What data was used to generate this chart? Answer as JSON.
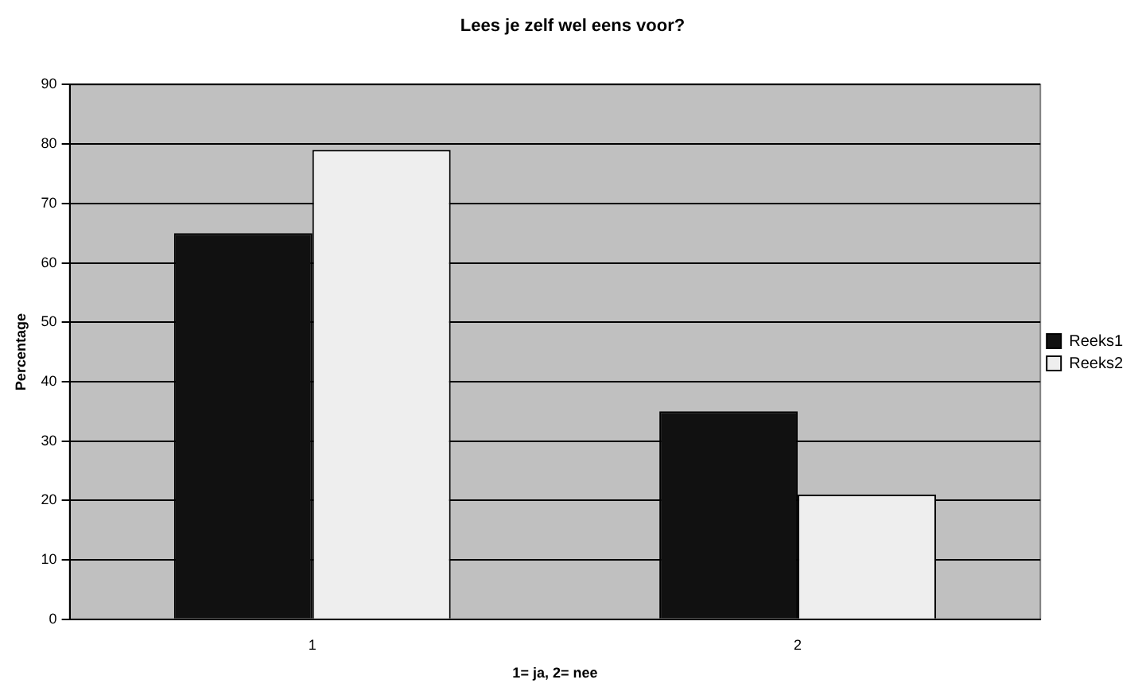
{
  "chart_data": {
    "type": "bar",
    "title": "Lees je zelf wel eens voor?",
    "xlabel": "1= ja, 2= nee",
    "ylabel": "Percentage",
    "categories": [
      "1",
      "2"
    ],
    "series": [
      {
        "name": "Reeks1",
        "color": "#111111",
        "values": [
          65,
          35
        ]
      },
      {
        "name": "Reeks2",
        "color": "#eeeeee",
        "values": [
          79,
          21
        ]
      }
    ],
    "ylim": [
      0,
      90
    ],
    "yticks": [
      0,
      10,
      20,
      30,
      40,
      50,
      60,
      70,
      80,
      90
    ],
    "grid": "y",
    "legend": "right"
  }
}
